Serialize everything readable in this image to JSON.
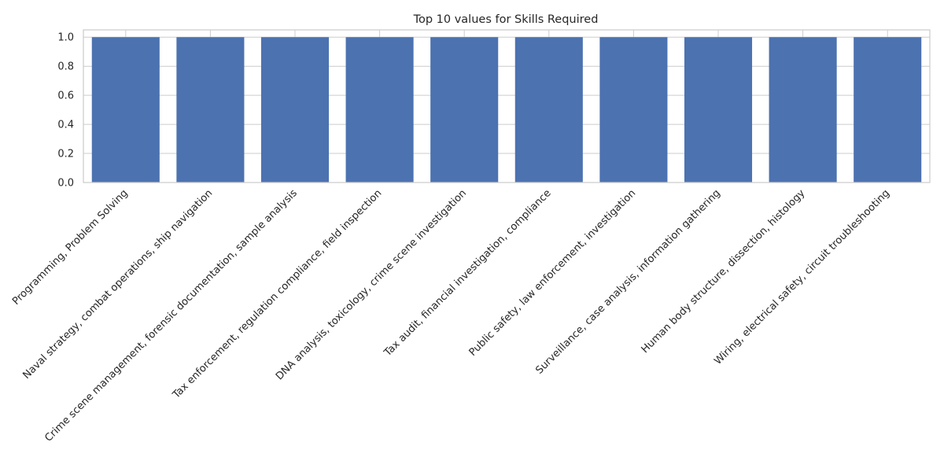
{
  "chart_data": {
    "type": "bar",
    "title": "Top 10 values for Skills Required",
    "xlabel": "",
    "ylabel": "",
    "categories": [
      "Programming, Problem Solving",
      "Naval strategy, combat operations, ship navigation",
      "Crime scene management, forensic documentation, sample analysis",
      "Tax enforcement, regulation compliance, field inspection",
      "DNA analysis, toxicology, crime scene investigation",
      "Tax audit, financial investigation, compliance",
      "Public safety, law enforcement, investigation",
      "Surveillance, case analysis, information gathering",
      "Human body structure, dissection, histology",
      "Wiring, electrical safety, circuit troubleshooting"
    ],
    "values": [
      1,
      1,
      1,
      1,
      1,
      1,
      1,
      1,
      1,
      1
    ],
    "ylim": [
      0,
      1.05
    ],
    "yticks": [
      "0.0",
      "0.2",
      "0.4",
      "0.6",
      "0.8",
      "1.0"
    ],
    "grid": true,
    "bar_color": "#4c72b0",
    "grid_color": "#cccccc",
    "text_color": "#262626"
  }
}
